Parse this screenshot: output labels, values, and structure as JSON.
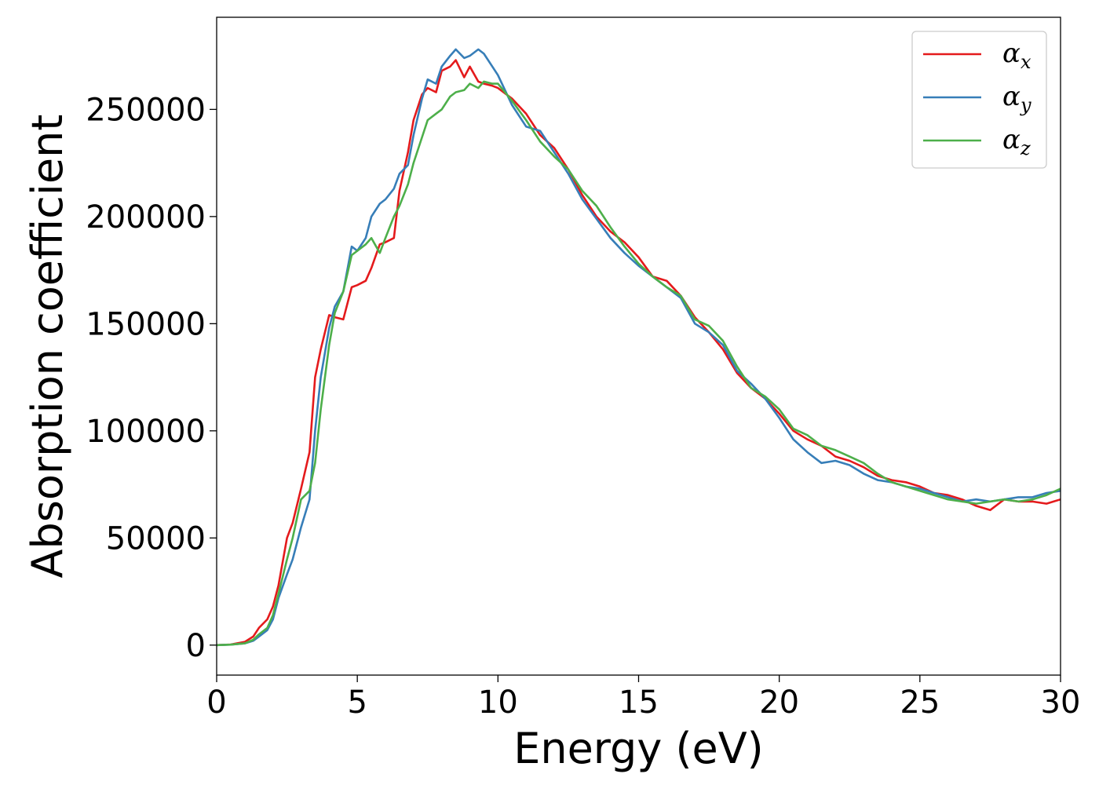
{
  "chart_data": {
    "type": "line",
    "title": "",
    "xlabel": "Energy (eV)",
    "ylabel": "Absorption coefficient",
    "xlim": [
      0,
      30
    ],
    "ylim": [
      -14000,
      293000
    ],
    "xticks": [
      0,
      5,
      10,
      15,
      20,
      25,
      30
    ],
    "yticks": [
      0,
      50000,
      100000,
      150000,
      200000,
      250000
    ],
    "xtick_labels": [
      "0",
      "5",
      "10",
      "15",
      "20",
      "25",
      "30"
    ],
    "ytick_labels": [
      "0",
      "50000",
      "100000",
      "150000",
      "200000",
      "250000"
    ],
    "grid": false,
    "legend_position": "top-right",
    "series": [
      {
        "name": "αx",
        "symbol": "α",
        "subscript": "x",
        "color": "#e41a1c",
        "x": [
          0,
          0.5,
          1.0,
          1.3,
          1.5,
          1.8,
          2.0,
          2.2,
          2.5,
          2.7,
          3.0,
          3.3,
          3.5,
          3.7,
          4.0,
          4.2,
          4.5,
          4.8,
          5.0,
          5.3,
          5.5,
          5.8,
          6.0,
          6.3,
          6.5,
          6.8,
          7.0,
          7.3,
          7.5,
          7.8,
          8.0,
          8.3,
          8.5,
          8.8,
          9.0,
          9.3,
          9.5,
          9.8,
          10.0,
          10.5,
          11.0,
          11.5,
          12.0,
          12.5,
          13.0,
          13.5,
          14.0,
          14.5,
          15.0,
          15.5,
          16.0,
          16.5,
          17.0,
          17.5,
          18.0,
          18.5,
          19.0,
          19.5,
          20.0,
          20.5,
          21.0,
          21.5,
          22.0,
          22.5,
          23.0,
          23.5,
          24.0,
          24.5,
          25.0,
          25.5,
          26.0,
          26.5,
          27.0,
          27.5,
          28.0,
          28.5,
          29.0,
          29.5,
          30.0
        ],
        "y": [
          0,
          300,
          1500,
          4000,
          8000,
          12000,
          18000,
          28000,
          50000,
          57000,
          73000,
          90000,
          125000,
          138000,
          154000,
          153000,
          152000,
          167000,
          168000,
          170000,
          176000,
          187000,
          188000,
          190000,
          212000,
          230000,
          245000,
          257000,
          260000,
          258000,
          268000,
          270000,
          273000,
          265000,
          270000,
          263000,
          262000,
          261000,
          260000,
          255000,
          248000,
          238000,
          232000,
          222000,
          210000,
          200000,
          193000,
          188000,
          181000,
          172000,
          170000,
          163000,
          153000,
          146000,
          138000,
          127000,
          120000,
          115000,
          108000,
          100000,
          96000,
          93000,
          88000,
          86000,
          83000,
          79000,
          77000,
          76000,
          74000,
          71000,
          70000,
          68000,
          65000,
          63000,
          68000,
          67000,
          67000,
          66000,
          68000
        ]
      },
      {
        "name": "αy",
        "symbol": "α",
        "subscript": "y",
        "color": "#377eb8",
        "x": [
          0,
          0.5,
          1.0,
          1.3,
          1.5,
          1.8,
          2.0,
          2.2,
          2.5,
          2.7,
          3.0,
          3.3,
          3.5,
          3.7,
          4.0,
          4.2,
          4.5,
          4.8,
          5.0,
          5.3,
          5.5,
          5.8,
          6.0,
          6.3,
          6.5,
          6.8,
          7.0,
          7.3,
          7.5,
          7.8,
          8.0,
          8.3,
          8.5,
          8.8,
          9.0,
          9.3,
          9.5,
          9.8,
          10.0,
          10.5,
          11.0,
          11.5,
          12.0,
          12.5,
          13.0,
          13.5,
          14.0,
          14.5,
          15.0,
          15.5,
          16.0,
          16.5,
          17.0,
          17.5,
          18.0,
          18.5,
          19.0,
          19.5,
          20.0,
          20.5,
          21.0,
          21.5,
          22.0,
          22.5,
          23.0,
          23.5,
          24.0,
          24.5,
          25.0,
          25.5,
          26.0,
          26.5,
          27.0,
          27.5,
          28.0,
          28.5,
          29.0,
          29.5,
          30.0
        ],
        "y": [
          0,
          200,
          800,
          2000,
          4000,
          7000,
          12000,
          22000,
          33000,
          40000,
          55000,
          68000,
          100000,
          125000,
          148000,
          158000,
          165000,
          186000,
          184000,
          190000,
          200000,
          206000,
          208000,
          213000,
          220000,
          224000,
          238000,
          255000,
          264000,
          262000,
          270000,
          275000,
          278000,
          274000,
          275000,
          278000,
          276000,
          270000,
          266000,
          252000,
          242000,
          240000,
          230000,
          220000,
          208000,
          199000,
          190000,
          183000,
          177000,
          172000,
          167000,
          162000,
          150000,
          146000,
          140000,
          128000,
          122000,
          115000,
          106000,
          96000,
          90000,
          85000,
          86000,
          84000,
          80000,
          77000,
          76000,
          74000,
          73000,
          71000,
          69000,
          67000,
          68000,
          67000,
          68000,
          69000,
          69000,
          71000,
          72000
        ]
      },
      {
        "name": "αz",
        "symbol": "α",
        "subscript": "z",
        "color": "#4daf4a",
        "x": [
          0,
          0.5,
          1.0,
          1.3,
          1.5,
          1.8,
          2.0,
          2.2,
          2.5,
          2.7,
          3.0,
          3.3,
          3.5,
          3.7,
          4.0,
          4.2,
          4.5,
          4.8,
          5.0,
          5.3,
          5.5,
          5.8,
          6.0,
          6.3,
          6.5,
          6.8,
          7.0,
          7.3,
          7.5,
          7.8,
          8.0,
          8.3,
          8.5,
          8.8,
          9.0,
          9.3,
          9.5,
          9.8,
          10.0,
          10.5,
          11.0,
          11.5,
          12.0,
          12.5,
          13.0,
          13.5,
          14.0,
          14.5,
          15.0,
          15.5,
          16.0,
          16.5,
          17.0,
          17.5,
          18.0,
          18.5,
          19.0,
          19.5,
          20.0,
          20.5,
          21.0,
          21.5,
          22.0,
          22.5,
          23.0,
          23.5,
          24.0,
          24.5,
          25.0,
          25.5,
          26.0,
          26.5,
          27.0,
          27.5,
          28.0,
          28.5,
          29.0,
          29.5,
          30.0
        ],
        "y": [
          0,
          200,
          800,
          2500,
          5000,
          8000,
          14000,
          24000,
          40000,
          50000,
          68000,
          72000,
          85000,
          110000,
          140000,
          155000,
          165000,
          182000,
          184000,
          187000,
          190000,
          183000,
          190000,
          200000,
          205000,
          215000,
          225000,
          237000,
          245000,
          248000,
          250000,
          256000,
          258000,
          259000,
          262000,
          260000,
          263000,
          262000,
          262000,
          254000,
          245000,
          235000,
          228000,
          222000,
          212000,
          205000,
          195000,
          186000,
          178000,
          172000,
          167000,
          163000,
          152000,
          149000,
          142000,
          130000,
          120000,
          116000,
          110000,
          101000,
          98000,
          93000,
          91000,
          88000,
          85000,
          80000,
          76000,
          74000,
          72000,
          70000,
          68000,
          67000,
          66000,
          67000,
          68000,
          67000,
          68000,
          70000,
          73000
        ]
      }
    ]
  }
}
